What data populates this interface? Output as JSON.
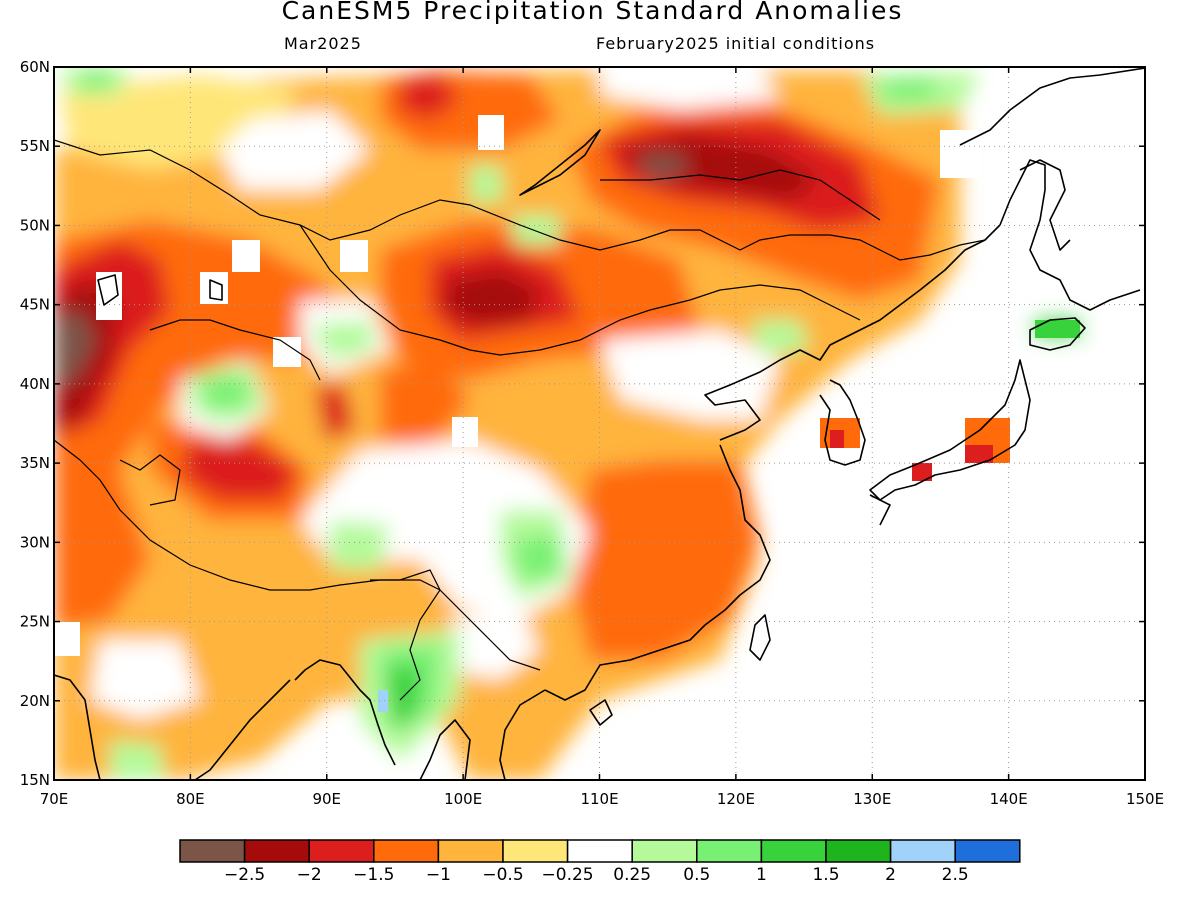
{
  "title": "CanESM5 Precipitation Standard Anomalies",
  "subtitle_left": "Mar2025",
  "subtitle_right": "February2025 initial conditions",
  "map": {
    "lon_range": [
      70,
      150
    ],
    "lat_range": [
      15,
      60
    ],
    "lon_ticks": [
      "70E",
      "80E",
      "90E",
      "100E",
      "110E",
      "120E",
      "130E",
      "140E",
      "150E"
    ],
    "lat_ticks": [
      "15N",
      "20N",
      "25N",
      "30N",
      "35N",
      "40N",
      "45N",
      "50N",
      "55N",
      "60N"
    ],
    "grid": "dotted"
  },
  "colorbar": {
    "colors": [
      "#7a5548",
      "#a50b0b",
      "#dc1e1e",
      "#ff6a0a",
      "#ffb43c",
      "#ffe678",
      "#ffffff",
      "#b4fa9a",
      "#78f073",
      "#37d23c",
      "#1eb41e",
      "#a0d2fa",
      "#1e6edc"
    ],
    "labels": [
      "−2.5",
      "−2",
      "−1.5",
      "−1",
      "−0.5",
      "−0.25",
      "0.25",
      "0.5",
      "1",
      "1.5",
      "2",
      "2.5"
    ]
  }
}
